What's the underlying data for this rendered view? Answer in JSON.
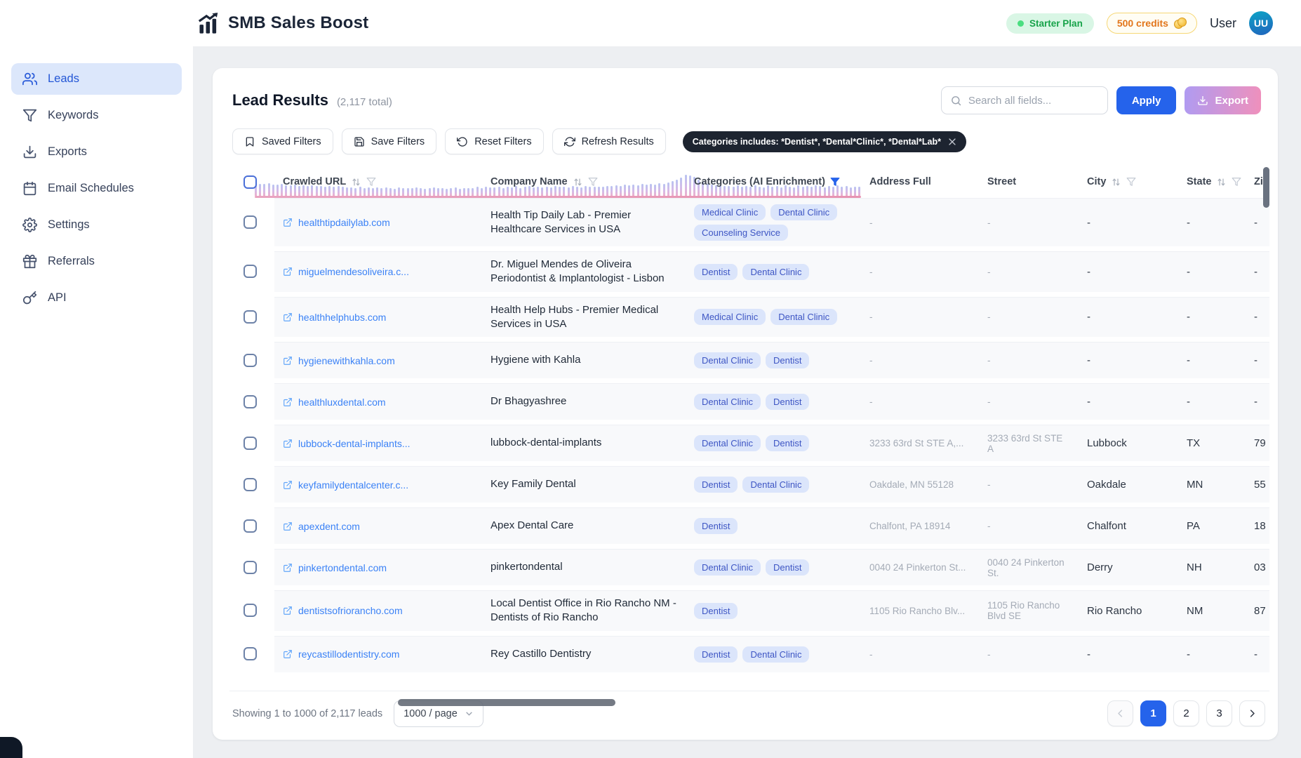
{
  "app": {
    "name": "SMB Sales Boost"
  },
  "header": {
    "plan_badge": "Starter Plan",
    "credits_badge": "500 credits",
    "user_label": "User",
    "avatar_initials": "UU"
  },
  "sidebar": {
    "items": [
      {
        "label": "Leads",
        "icon": "users",
        "active": true
      },
      {
        "label": "Keywords",
        "icon": "funnel",
        "active": false
      },
      {
        "label": "Exports",
        "icon": "download",
        "active": false
      },
      {
        "label": "Email Schedules",
        "icon": "calendar",
        "active": false
      },
      {
        "label": "Settings",
        "icon": "gear",
        "active": false
      },
      {
        "label": "Referrals",
        "icon": "gift",
        "active": false
      },
      {
        "label": "API",
        "icon": "key",
        "active": false
      }
    ]
  },
  "toolbar": {
    "title": "Lead Results",
    "total": "(2,117 total)",
    "search_placeholder": "Search all fields...",
    "apply_label": "Apply",
    "export_label": "Export"
  },
  "filter_bar": {
    "buttons": [
      {
        "label": "Saved Filters",
        "icon": "bookmark"
      },
      {
        "label": "Save Filters",
        "icon": "save"
      },
      {
        "label": "Reset Filters",
        "icon": "reset"
      },
      {
        "label": "Refresh Results",
        "icon": "refresh"
      }
    ],
    "chip": {
      "label": "Categories includes: *Dentist*, *Dental*Clinic*, *Dental*Lab*"
    }
  },
  "table": {
    "columns": [
      {
        "label": "",
        "type": "checkbox",
        "sort": false,
        "funnel": "none"
      },
      {
        "label": "Crawled URL",
        "type": "text",
        "sort": true,
        "funnel": "grey"
      },
      {
        "label": "Company Name",
        "type": "text",
        "sort": true,
        "funnel": "grey"
      },
      {
        "label": "Categories (AI Enrichment)",
        "type": "text",
        "sort": false,
        "funnel": "blue"
      },
      {
        "label": "Address Full",
        "type": "text",
        "sort": false,
        "funnel": "none"
      },
      {
        "label": "Street",
        "type": "text",
        "sort": false,
        "funnel": "none"
      },
      {
        "label": "City",
        "type": "text",
        "sort": true,
        "funnel": "grey"
      },
      {
        "label": "State",
        "type": "text",
        "sort": true,
        "funnel": "grey"
      },
      {
        "label": "Zip",
        "type": "text",
        "sort": false,
        "funnel": "none"
      }
    ],
    "histogram": [
      0.55,
      0.52,
      0.5,
      0.53,
      0.48,
      0.46,
      0.49,
      0.44,
      0.42,
      0.45,
      0.4,
      0.43,
      0.38,
      0.41,
      0.37,
      0.39,
      0.36,
      0.38,
      0.35,
      0.37,
      0.34,
      0.3,
      0.32,
      0.28,
      0.33,
      0.29,
      0.31,
      0.27,
      0.3,
      0.26,
      0.32,
      0.28,
      0.25,
      0.31,
      0.27,
      0.29,
      0.26,
      0.3,
      0.28,
      0.25,
      0.27,
      0.31,
      0.26,
      0.29,
      0.24,
      0.28,
      0.3,
      0.25,
      0.27,
      0.26,
      0.29,
      0.33,
      0.27,
      0.35,
      0.3,
      0.32,
      0.36,
      0.28,
      0.34,
      0.31,
      0.37,
      0.29,
      0.33,
      0.38,
      0.3,
      0.35,
      0.32,
      0.36,
      0.31,
      0.39,
      0.33,
      0.35,
      0.3,
      0.37,
      0.34,
      0.32,
      0.38,
      0.33,
      0.36,
      0.34,
      0.36,
      0.4,
      0.37,
      0.43,
      0.39,
      0.45,
      0.41,
      0.47,
      0.44,
      0.5,
      0.46,
      0.52,
      0.48,
      0.54,
      0.5,
      0.58,
      0.66,
      0.74,
      0.85,
      1.0,
      0.95,
      0.88,
      0.72,
      0.6,
      0.52,
      0.46,
      0.42,
      0.44,
      0.4,
      0.38,
      0.36,
      0.42,
      0.34,
      0.4,
      0.33,
      0.44,
      0.36,
      0.31,
      0.42,
      0.35,
      0.38,
      0.32,
      0.43,
      0.36,
      0.3,
      0.41,
      0.34,
      0.39,
      0.33,
      0.44,
      0.37,
      0.31,
      0.4,
      0.35,
      0.42,
      0.33,
      0.38,
      0.31,
      0.36,
      0.34
    ],
    "rows": [
      {
        "url": "healthtipdailylab.com",
        "company": "Health Tip Daily Lab - Premier Healthcare Services in USA",
        "tags": [
          "Medical Clinic",
          "Dental Clinic",
          "Counseling Service"
        ],
        "address": "-",
        "street": "-",
        "city": "-",
        "state": "-",
        "zip": "-"
      },
      {
        "url": "miguelmendesoliveira.c...",
        "company": "Dr. Miguel Mendes de Oliveira Periodontist & Implantologist - Lisbon",
        "tags": [
          "Dentist",
          "Dental Clinic"
        ],
        "address": "-",
        "street": "-",
        "city": "-",
        "state": "-",
        "zip": "-"
      },
      {
        "url": "healthhelphubs.com",
        "company": "Health Help Hubs - Premier Medical Services in USA",
        "tags": [
          "Medical Clinic",
          "Dental Clinic"
        ],
        "address": "-",
        "street": "-",
        "city": "-",
        "state": "-",
        "zip": "-"
      },
      {
        "url": "hygienewithkahla.com",
        "company": "Hygiene with Kahla",
        "tags": [
          "Dental Clinic",
          "Dentist"
        ],
        "address": "-",
        "street": "-",
        "city": "-",
        "state": "-",
        "zip": "-"
      },
      {
        "url": "healthluxdental.com",
        "company": "Dr Bhagyashree",
        "tags": [
          "Dental Clinic",
          "Dentist"
        ],
        "address": "-",
        "street": "-",
        "city": "-",
        "state": "-",
        "zip": "-"
      },
      {
        "url": "lubbock-dental-implants...",
        "company": "lubbock-dental-implants",
        "tags": [
          "Dental Clinic",
          "Dentist"
        ],
        "address": "3233 63rd St STE A,...",
        "street": "3233 63rd St STE A",
        "city": "Lubbock",
        "state": "TX",
        "zip": "79"
      },
      {
        "url": "keyfamilydentalcenter.c...",
        "company": "Key Family Dental",
        "tags": [
          "Dentist",
          "Dental Clinic"
        ],
        "address": "Oakdale, MN 55128",
        "street": "-",
        "city": "Oakdale",
        "state": "MN",
        "zip": "55"
      },
      {
        "url": "apexdent.com",
        "company": "Apex Dental Care",
        "tags": [
          "Dentist"
        ],
        "address": "Chalfont, PA 18914",
        "street": "-",
        "city": "Chalfont",
        "state": "PA",
        "zip": "18"
      },
      {
        "url": "pinkertondental.com",
        "company": "pinkertondental",
        "tags": [
          "Dental Clinic",
          "Dentist"
        ],
        "address": "0040 24 Pinkerton St...",
        "street": "0040 24 Pinkerton St.",
        "city": "Derry",
        "state": "NH",
        "zip": "03"
      },
      {
        "url": "dentistsofriorancho.com",
        "company": "Local Dentist Office in Rio Rancho NM - Dentists of Rio Rancho",
        "tags": [
          "Dentist"
        ],
        "address": "1105 Rio Rancho Blv...",
        "street": "1105 Rio Rancho Blvd SE",
        "city": "Rio Rancho",
        "state": "NM",
        "zip": "87"
      },
      {
        "url": "reycastillodentistry.com",
        "company": "Rey Castillo Dentistry",
        "tags": [
          "Dentist",
          "Dental Clinic"
        ],
        "address": "-",
        "street": "-",
        "city": "-",
        "state": "-",
        "zip": "-"
      }
    ]
  },
  "footer": {
    "summary": "Showing 1 to 1000 of 2,117 leads",
    "page_size": "1000 / page",
    "pagination": {
      "pages": [
        "1",
        "2",
        "3"
      ],
      "active_page": "1",
      "prev_disabled": true
    }
  }
}
